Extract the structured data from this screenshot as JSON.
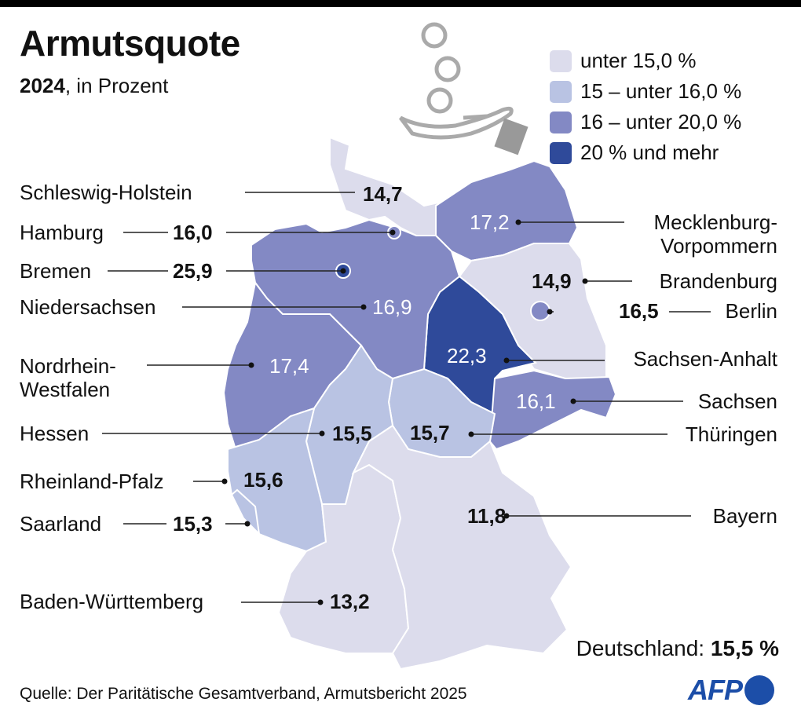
{
  "title": "Armutsquote",
  "subtitle_year": "2024",
  "subtitle_rest": ", in Prozent",
  "legend": [
    {
      "label": "unter 15,0 %",
      "color": "#dcdcec"
    },
    {
      "label": "15 – unter 16,0 %",
      "color": "#b9c3e3"
    },
    {
      "label": "16 – unter 20,0 %",
      "color": "#8389c4"
    },
    {
      "label": "20 % und mehr",
      "color": "#2f4a9a"
    }
  ],
  "states": {
    "sh": {
      "name": "Schleswig-Holstein",
      "value": "14,7"
    },
    "hh": {
      "name": "Hamburg",
      "value": "16,0"
    },
    "hb": {
      "name": "Bremen",
      "value": "25,9"
    },
    "ni": {
      "name": "Niedersachsen",
      "value": "16,9"
    },
    "nw": {
      "name1": "Nordrhein-",
      "name2": "Westfalen",
      "value": "17,4"
    },
    "he": {
      "name": "Hessen",
      "value": "15,5"
    },
    "rp": {
      "name": "Rheinland-Pfalz",
      "value": "15,6"
    },
    "sl": {
      "name": "Saarland",
      "value": "15,3"
    },
    "bw": {
      "name": "Baden-Württemberg",
      "value": "13,2"
    },
    "by": {
      "name": "Bayern",
      "value": "11,8"
    },
    "th": {
      "name": "Thüringen",
      "value": "15,7"
    },
    "sn": {
      "name": "Sachsen",
      "value": "16,1"
    },
    "st": {
      "name": "Sachsen-Anhalt",
      "value": "22,3"
    },
    "be": {
      "name": "Berlin",
      "value": "16,5"
    },
    "bb": {
      "name": "Brandenburg",
      "value": "14,9"
    },
    "mv": {
      "name1": "Mecklenburg-",
      "name2": "Vorpommern",
      "value": "17,2"
    }
  },
  "total_label": "Deutschland: ",
  "total_value": "15,5 %",
  "source": "Quelle: Der Paritätische Gesamtverband, Armutsbericht 2025",
  "logo": "AFP"
}
